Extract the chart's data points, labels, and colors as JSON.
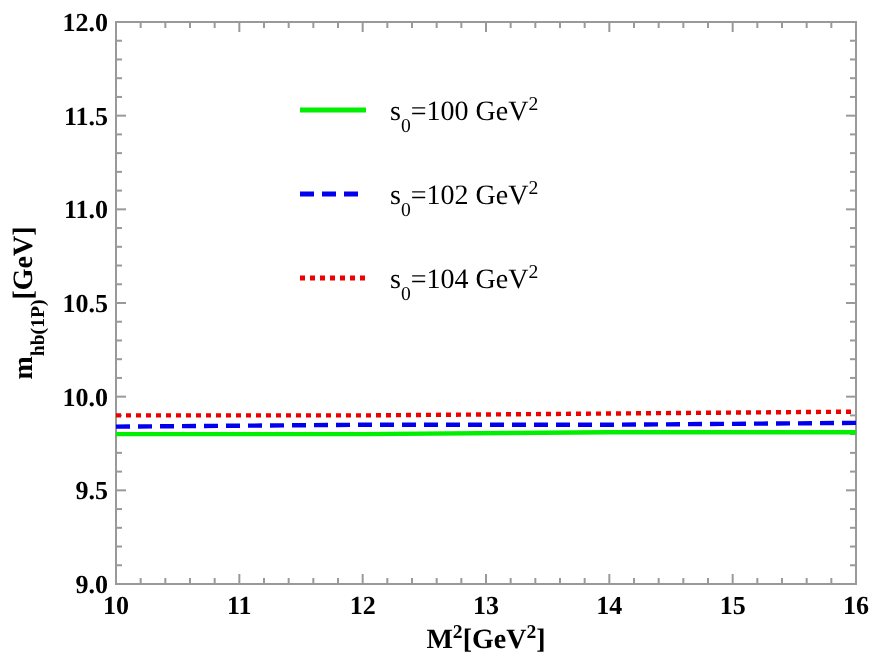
{
  "chart_data": {
    "type": "line",
    "xlabel": "M$^{2}$[GeV$^{2}$]",
    "ylabel": "m$_{hb(1P)}$[GeV]",
    "xlim": [
      10,
      16
    ],
    "ylim": [
      9,
      12
    ],
    "xticks": [
      10,
      {
        "value": 10.2,
        "label": null
      },
      {
        "value": 10.4,
        "label": null
      },
      {
        "value": 10.6,
        "label": null
      },
      {
        "value": 10.8,
        "label": null
      },
      11,
      {
        "value": 11.2,
        "label": null
      },
      {
        "value": 11.4,
        "label": null
      },
      {
        "value": 11.6,
        "label": null
      },
      {
        "value": 11.8,
        "label": null
      },
      12,
      {
        "value": 12.2,
        "label": null
      },
      {
        "value": 12.4,
        "label": null
      },
      {
        "value": 12.6,
        "label": null
      },
      {
        "value": 12.8,
        "label": null
      },
      13,
      {
        "value": 13.2,
        "label": null
      },
      {
        "value": 13.4,
        "label": null
      },
      {
        "value": 13.6,
        "label": null
      },
      {
        "value": 13.8,
        "label": null
      },
      14,
      {
        "value": 14.2,
        "label": null
      },
      {
        "value": 14.4,
        "label": null
      },
      {
        "value": 14.6,
        "label": null
      },
      {
        "value": 14.8,
        "label": null
      },
      15,
      {
        "value": 15.2,
        "label": null
      },
      {
        "value": 15.4,
        "label": null
      },
      {
        "value": 15.6,
        "label": null
      },
      {
        "value": 15.8,
        "label": null
      },
      16
    ],
    "yticks": [
      {
        "value": 9,
        "label": "9.0"
      },
      {
        "value": 9.1,
        "label": null
      },
      {
        "value": 9.2,
        "label": null
      },
      {
        "value": 9.3,
        "label": null
      },
      {
        "value": 9.4,
        "label": null
      },
      9.5,
      {
        "value": 9.6,
        "label": null
      },
      {
        "value": 9.7,
        "label": null
      },
      {
        "value": 9.8,
        "label": null
      },
      {
        "value": 9.9,
        "label": null
      },
      {
        "value": 10,
        "label": "10.0"
      },
      {
        "value": 10.1,
        "label": null
      },
      {
        "value": 10.2,
        "label": null
      },
      {
        "value": 10.3,
        "label": null
      },
      {
        "value": 10.4,
        "label": null
      },
      10.5,
      {
        "value": 10.6,
        "label": null
      },
      {
        "value": 10.7,
        "label": null
      },
      {
        "value": 10.8,
        "label": null
      },
      {
        "value": 10.9,
        "label": null
      },
      {
        "value": 11,
        "label": "11.0"
      },
      {
        "value": 11.1,
        "label": null
      },
      {
        "value": 11.2,
        "label": null
      },
      {
        "value": 11.3,
        "label": null
      },
      {
        "value": 11.4,
        "label": null
      },
      11.5,
      {
        "value": 11.6,
        "label": null
      },
      {
        "value": 11.7,
        "label": null
      },
      {
        "value": 11.8,
        "label": null
      },
      {
        "value": 11.9,
        "label": null
      },
      {
        "value": 12,
        "label": "12.0"
      }
    ],
    "x": [
      10,
      12,
      14,
      16
    ],
    "legend": "top",
    "grid": false,
    "series": [
      {
        "name": "s$_{0}$=100 GeV$^{2}$",
        "color": "#00ee00",
        "line_style": "solid",
        "values": [
          9.8,
          9.8,
          9.81,
          9.81
        ]
      },
      {
        "name": "s$_{0}$=102 GeV$^{2}$",
        "color": "#0000ee",
        "line_style": "dashed",
        "values": [
          9.84,
          9.85,
          9.85,
          9.86
        ]
      },
      {
        "name": "s$_{0}$=104 GeV$^{2}$",
        "color": "#ee0000",
        "line_style": "dotted",
        "values": [
          9.9,
          9.9,
          9.91,
          9.92
        ]
      }
    ]
  }
}
